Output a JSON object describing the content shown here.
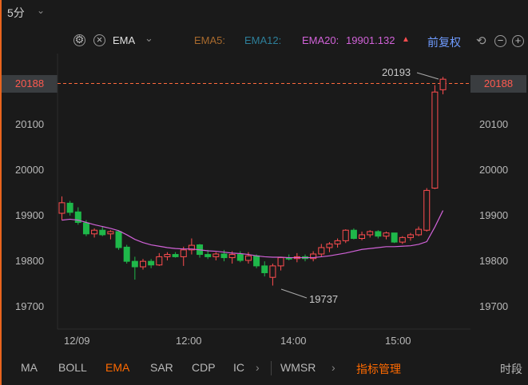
{
  "timeframe": {
    "label": "5分"
  },
  "toolbar": {
    "indicator": "EMA",
    "ema5": "EMA5:",
    "ema12": "EMA12:",
    "ema20_label": "EMA20:",
    "ema20_value": "19901.132",
    "ema20_arrow": "▲",
    "adjust": "前复权"
  },
  "colors": {
    "up": "#ff4d4f",
    "down": "#1fb84a",
    "ema20": "#d162d8",
    "ema5": "#a86a2d",
    "ema12": "#2d7f9a",
    "accent": "#ff6a00",
    "bg": "#1a1a1a"
  },
  "price_marker": {
    "value": "20188"
  },
  "annotations": {
    "high": "20193",
    "low": "19737"
  },
  "chart_data": {
    "type": "candlestick",
    "y_ticks": [
      "20100",
      "20000",
      "19900",
      "19800",
      "19700"
    ],
    "x_ticks": [
      "12/09",
      "12:00",
      "14:00",
      "15:00"
    ],
    "ylim": [
      19670,
      20215
    ],
    "candles": [
      [
        19895,
        19932,
        19880,
        19918
      ],
      [
        19917,
        19922,
        19890,
        19897
      ],
      [
        19898,
        19908,
        19870,
        19875
      ],
      [
        19874,
        19880,
        19845,
        19850
      ],
      [
        19850,
        19862,
        19842,
        19858
      ],
      [
        19858,
        19866,
        19845,
        19848
      ],
      [
        19850,
        19858,
        19838,
        19855
      ],
      [
        19855,
        19858,
        19815,
        19820
      ],
      [
        19821,
        19826,
        19785,
        19790
      ],
      [
        19790,
        19800,
        19750,
        19778
      ],
      [
        19778,
        19795,
        19772,
        19790
      ],
      [
        19790,
        19795,
        19775,
        19782
      ],
      [
        19782,
        19808,
        19780,
        19800
      ],
      [
        19800,
        19810,
        19792,
        19805
      ],
      [
        19805,
        19810,
        19798,
        19800
      ],
      [
        19800,
        19822,
        19780,
        19815
      ],
      [
        19815,
        19840,
        19805,
        19825
      ],
      [
        19826,
        19828,
        19798,
        19805
      ],
      [
        19805,
        19815,
        19795,
        19800
      ],
      [
        19800,
        19810,
        19792,
        19806
      ],
      [
        19806,
        19815,
        19790,
        19798
      ],
      [
        19798,
        19812,
        19785,
        19805
      ],
      [
        19805,
        19812,
        19788,
        19792
      ],
      [
        19792,
        19810,
        19785,
        19802
      ],
      [
        19802,
        19805,
        19775,
        19780
      ],
      [
        19780,
        19790,
        19757,
        19765
      ],
      [
        19755,
        19785,
        19737,
        19780
      ],
      [
        19780,
        19800,
        19770,
        19798
      ],
      [
        19798,
        19805,
        19792,
        19795
      ],
      [
        19796,
        19808,
        19788,
        19800
      ],
      [
        19800,
        19805,
        19790,
        19796
      ],
      [
        19796,
        19812,
        19790,
        19806
      ],
      [
        19806,
        19828,
        19800,
        19820
      ],
      [
        19820,
        19832,
        19810,
        19828
      ],
      [
        19828,
        19840,
        19820,
        19835
      ],
      [
        19835,
        19860,
        19830,
        19858
      ],
      [
        19858,
        19862,
        19838,
        19840
      ],
      [
        19840,
        19855,
        19836,
        19848
      ],
      [
        19848,
        19858,
        19842,
        19855
      ],
      [
        19855,
        19858,
        19840,
        19845
      ],
      [
        19845,
        19855,
        19838,
        19852
      ],
      [
        19852,
        19852,
        19830,
        19832
      ],
      [
        19832,
        19845,
        19828,
        19842
      ],
      [
        19842,
        19852,
        19835,
        19848
      ],
      [
        19848,
        19866,
        19845,
        19860
      ],
      [
        19858,
        19950,
        19855,
        19945
      ],
      [
        19950,
        20175,
        19948,
        20160
      ],
      [
        20165,
        20193,
        20155,
        20188
      ]
    ],
    "ema20": [
      19880,
      19882,
      19880,
      19875,
      19870,
      19866,
      19862,
      19857,
      19848,
      19838,
      19831,
      19826,
      19823,
      19820,
      19818,
      19817,
      19817,
      19815,
      19813,
      19812,
      19810,
      19808,
      19807,
      19805,
      19802,
      19800,
      19799,
      19799,
      19798,
      19798,
      19798,
      19798,
      19800,
      19802,
      19805,
      19808,
      19812,
      19816,
      19818,
      19820,
      19822,
      19822,
      19823,
      19824,
      19827,
      19833,
      19865,
      19901
    ]
  },
  "bottom_tabs": [
    "MA",
    "BOLL",
    "EMA",
    "SAR",
    "CDP",
    "IC"
  ],
  "bottom_more": "WMSR",
  "bottom_manage": "指标管理",
  "bottom_right": "时段"
}
